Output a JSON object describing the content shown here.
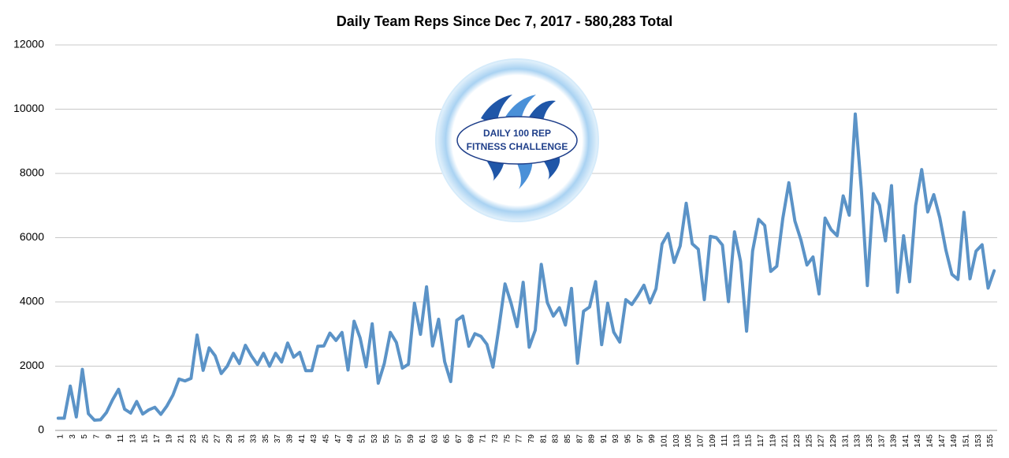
{
  "chart_data": {
    "type": "line",
    "title": "Daily Team Reps Since Dec 7, 2017 - 580,283 Total",
    "annotations": [
      "DAILY 100 REP",
      "FITNESS CHALLENGE"
    ],
    "categories": [
      "1",
      null,
      "3",
      null,
      "5",
      null,
      "7",
      null,
      "9",
      null,
      "11",
      null,
      "13",
      null,
      "15",
      null,
      "17",
      null,
      "19",
      null,
      "21",
      null,
      "23",
      null,
      "25",
      null,
      "27",
      null,
      "29",
      null,
      "31",
      null,
      "33",
      null,
      "35",
      null,
      "37",
      null,
      "39",
      null,
      "41",
      null,
      "43",
      null,
      "45",
      null,
      "47",
      null,
      "49",
      null,
      "51",
      null,
      "53",
      null,
      "55",
      null,
      "57",
      null,
      "59",
      null,
      "61",
      null,
      "63",
      null,
      "65",
      null,
      "67",
      null,
      "69",
      null,
      "71",
      null,
      "73",
      null,
      "75",
      null,
      "77",
      null,
      "79",
      null,
      "81",
      null,
      "83",
      null,
      "85",
      null,
      "87",
      null,
      "89",
      null,
      "91",
      null,
      "93",
      null,
      "95",
      null,
      "97",
      null,
      "99",
      null,
      "101",
      null,
      "103",
      null,
      "105",
      null,
      "107",
      null,
      "109",
      null,
      "111",
      null,
      "113",
      null,
      "115",
      null,
      "117",
      null,
      "119",
      null,
      "121",
      null,
      "123",
      null,
      "125",
      null,
      "127",
      null,
      "129",
      null,
      "131",
      null,
      "133",
      null,
      "135",
      null,
      "137",
      null,
      "139",
      null,
      "141",
      null,
      "143",
      null,
      "145",
      null,
      "147",
      null,
      "149",
      null,
      "151",
      null,
      "153",
      null,
      "155",
      null
    ],
    "values": [
      380,
      380,
      1380,
      420,
      1900,
      520,
      320,
      330,
      560,
      950,
      1280,
      660,
      540,
      900,
      510,
      640,
      720,
      500,
      760,
      1100,
      1600,
      1540,
      1620,
      2970,
      1870,
      2570,
      2320,
      1770,
      2000,
      2400,
      2080,
      2650,
      2320,
      2050,
      2400,
      2000,
      2400,
      2130,
      2720,
      2280,
      2430,
      1860,
      1860,
      2620,
      2630,
      3030,
      2800,
      3050,
      1880,
      3400,
      2880,
      1980,
      3320,
      1470,
      2080,
      3050,
      2740,
      1940,
      2060,
      3960,
      2990,
      4470,
      2630,
      3460,
      2140,
      1520,
      3430,
      3560,
      2620,
      3010,
      2930,
      2680,
      1970,
      3220,
      4560,
      3960,
      3230,
      4610,
      2590,
      3120,
      5170,
      3980,
      3560,
      3820,
      3280,
      4420,
      2090,
      3710,
      3840,
      4630,
      2670,
      3960,
      3060,
      2750,
      4070,
      3920,
      4200,
      4520,
      3970,
      4410,
      5800,
      6130,
      5230,
      5740,
      7070,
      5810,
      5640,
      4070,
      6040,
      6000,
      5770,
      4010,
      6180,
      5260,
      3090,
      5590,
      6570,
      6380,
      4950,
      5110,
      6600,
      7710,
      6520,
      5930,
      5150,
      5400,
      4250,
      6610,
      6250,
      6060,
      7300,
      6700,
      9850,
      7520,
      4510,
      7370,
      7010,
      5900,
      7620,
      4300,
      6060,
      4630,
      7000,
      8120,
      6800,
      7340,
      6620,
      5620,
      4860,
      4700,
      6790,
      4720,
      5580,
      5780,
      4430,
      4970
    ],
    "color": "#5b93c7",
    "ylim": [
      0,
      12000
    ],
    "yticks": [
      0,
      2000,
      4000,
      6000,
      8000,
      10000,
      12000
    ],
    "grid": true
  }
}
